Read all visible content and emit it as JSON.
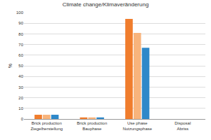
{
  "chart_data": {
    "type": "bar",
    "title": "Climate change/Klimaveränderung",
    "y_label": "%",
    "categories": [
      "Brick production\nZiegelherstellung",
      "Brick production\nBauphase",
      "Use phase\nNutzungsphase",
      "Disposal\nAbriss"
    ],
    "series": [
      {
        "color": "#f07d2d",
        "values": [
          4,
          1.5,
          94,
          0
        ]
      },
      {
        "color": "#f8b47c",
        "values": [
          4,
          1.5,
          81,
          0
        ]
      },
      {
        "color": "#2e88c9",
        "values": [
          4,
          1.5,
          67,
          0
        ]
      }
    ],
    "ylim": [
      0,
      100
    ],
    "yticks": [
      0,
      10,
      20,
      30,
      40,
      50,
      60,
      70,
      80,
      90,
      100
    ],
    "grid": true
  }
}
